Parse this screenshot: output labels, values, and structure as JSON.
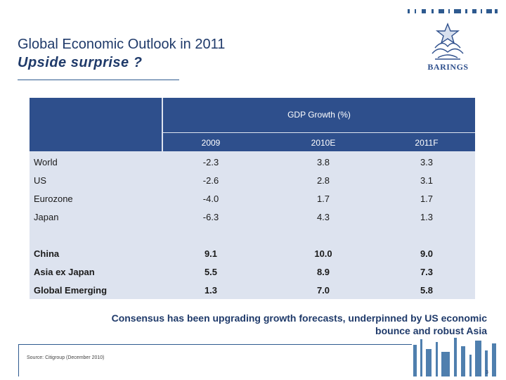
{
  "header": {
    "title": "Global Economic Outlook in 2011",
    "subtitle": "Upside surprise ?",
    "logo_text": "BARINGS"
  },
  "table": {
    "group_header": "GDP Growth (%)",
    "years": [
      "2009",
      "2010E",
      "2011F"
    ],
    "rows": [
      {
        "label": "World",
        "values": [
          "-2.3",
          "3.8",
          "3.3"
        ]
      },
      {
        "label": "US",
        "values": [
          "-2.6",
          "2.8",
          "3.1"
        ]
      },
      {
        "label": "Eurozone",
        "values": [
          "-4.0",
          "1.7",
          "1.7"
        ]
      },
      {
        "label": "Japan",
        "values": [
          "-6.3",
          "4.3",
          "1.3"
        ]
      },
      {
        "label": "China",
        "values": [
          "9.1",
          "10.0",
          "9.0"
        ]
      },
      {
        "label": "Asia ex Japan",
        "values": [
          "5.5",
          "8.9",
          "7.3"
        ]
      },
      {
        "label": "Global Emerging",
        "values": [
          "1.3",
          "7.0",
          "5.8"
        ]
      }
    ]
  },
  "tagline": "Consensus has been upgrading growth forecasts, underpinned by US economic bounce and robust Asia",
  "footer": {
    "source": "Source: Citigroup (December 2010)",
    "page": "3"
  },
  "colors": {
    "accent": "#2e4f8c",
    "table_bg": "#dde3ef",
    "title": "#1f3a6a"
  }
}
